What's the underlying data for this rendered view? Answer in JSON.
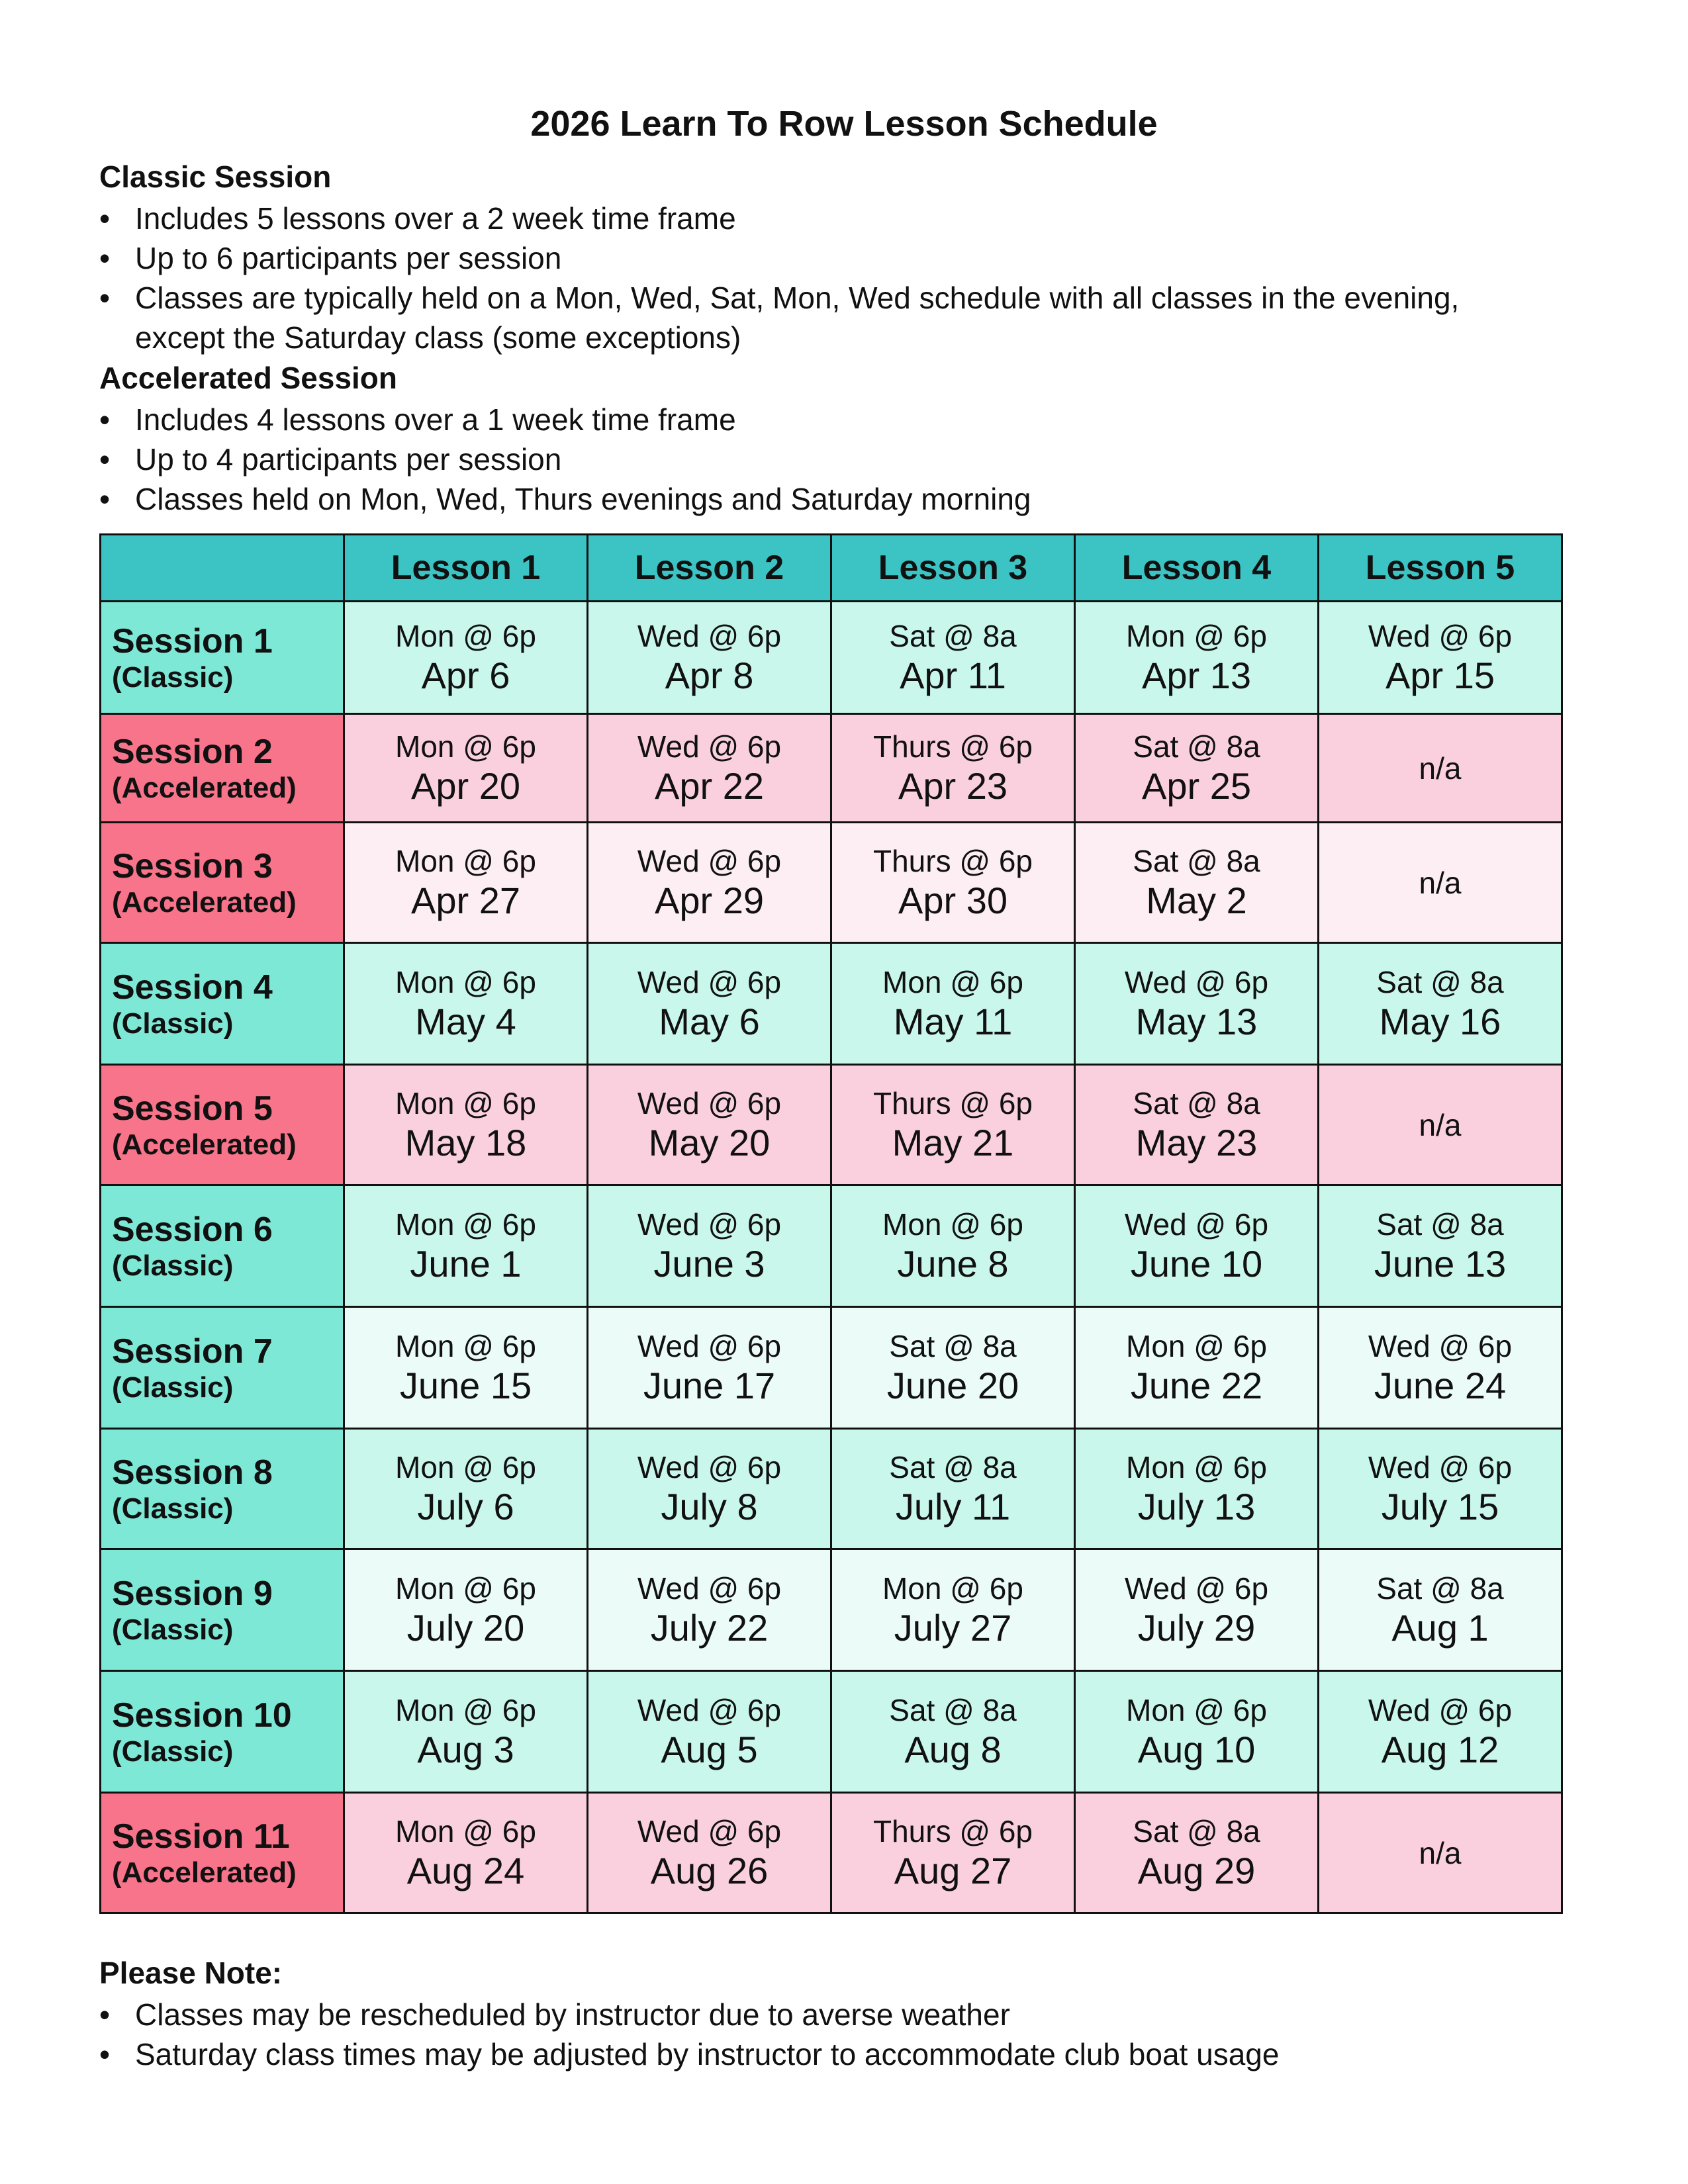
{
  "title": "2026 Learn To Row Lesson Schedule",
  "sections": [
    {
      "heading": "Classic Session",
      "bullets": [
        "Includes 5 lessons over a 2 week time frame",
        "Up to 6 participants per session",
        "Classes are typically held on a Mon, Wed, Sat, Mon, Wed schedule with all classes in the evening, except the Saturday class (some exceptions)"
      ]
    },
    {
      "heading": "Accelerated Session",
      "bullets": [
        "Includes 4 lessons over a 1 week time frame",
        "Up to 4 participants per session",
        "Classes held on Mon, Wed, Thurs evenings and Saturday morning"
      ]
    }
  ],
  "table": {
    "header": [
      "Lesson 1",
      "Lesson 2",
      "Lesson 3",
      "Lesson 4",
      "Lesson 5"
    ],
    "rows": [
      {
        "session": "Session 1",
        "kind": "(Classic)",
        "cells": [
          {
            "time": "Mon @ 6p",
            "date": "Apr 6"
          },
          {
            "time": "Wed @ 6p",
            "date": "Apr 8"
          },
          {
            "time": "Sat @ 8a",
            "date": "Apr 11"
          },
          {
            "time": "Mon @ 6p",
            "date": "Apr 13"
          },
          {
            "time": "Wed @ 6p",
            "date": "Apr 15"
          }
        ]
      },
      {
        "session": "Session 2",
        "kind": "(Accelerated)",
        "cells": [
          {
            "time": "Mon @ 6p",
            "date": "Apr 20"
          },
          {
            "time": "Wed @ 6p",
            "date": "Apr 22"
          },
          {
            "time": "Thurs @ 6p",
            "date": "Apr 23"
          },
          {
            "time": "Sat @ 8a",
            "date": "Apr 25"
          },
          "n/a"
        ]
      },
      {
        "session": "Session 3",
        "kind": "(Accelerated)",
        "cells": [
          {
            "time": "Mon @ 6p",
            "date": "Apr 27"
          },
          {
            "time": "Wed @ 6p",
            "date": "Apr 29"
          },
          {
            "time": "Thurs @ 6p",
            "date": "Apr 30"
          },
          {
            "time": "Sat @ 8a",
            "date": "May 2"
          },
          "n/a"
        ]
      },
      {
        "session": "Session 4",
        "kind": "(Classic)",
        "cells": [
          {
            "time": "Mon @ 6p",
            "date": "May 4"
          },
          {
            "time": "Wed @ 6p",
            "date": "May 6"
          },
          {
            "time": "Mon @ 6p",
            "date": "May 11"
          },
          {
            "time": "Wed @ 6p",
            "date": "May 13"
          },
          {
            "time": "Sat @ 8a",
            "date": "May 16"
          }
        ]
      },
      {
        "session": "Session 5",
        "kind": "(Accelerated)",
        "cells": [
          {
            "time": "Mon @ 6p",
            "date": "May 18"
          },
          {
            "time": "Wed @ 6p",
            "date": "May 20"
          },
          {
            "time": "Thurs @ 6p",
            "date": "May 21"
          },
          {
            "time": "Sat @ 8a",
            "date": "May 23"
          },
          "n/a"
        ]
      },
      {
        "session": "Session 6",
        "kind": "(Classic)",
        "cells": [
          {
            "time": "Mon @ 6p",
            "date": "June 1"
          },
          {
            "time": "Wed @ 6p",
            "date": "June 3"
          },
          {
            "time": "Mon @ 6p",
            "date": "June 8"
          },
          {
            "time": "Wed @ 6p",
            "date": "June 10"
          },
          {
            "time": "Sat @ 8a",
            "date": "June 13"
          }
        ]
      },
      {
        "session": "Session 7",
        "kind": "(Classic)",
        "cells": [
          {
            "time": "Mon @ 6p",
            "date": "June 15"
          },
          {
            "time": "Wed @ 6p",
            "date": "June 17"
          },
          {
            "time": "Sat @ 8a",
            "date": "June 20"
          },
          {
            "time": "Mon @ 6p",
            "date": "June 22"
          },
          {
            "time": "Wed @ 6p",
            "date": "June 24"
          }
        ]
      },
      {
        "session": "Session 8",
        "kind": "(Classic)",
        "cells": [
          {
            "time": "Mon @ 6p",
            "date": "July 6"
          },
          {
            "time": "Wed @ 6p",
            "date": "July 8"
          },
          {
            "time": "Sat @ 8a",
            "date": "July 11"
          },
          {
            "time": "Mon @ 6p",
            "date": "July 13"
          },
          {
            "time": "Wed @ 6p",
            "date": "July 15"
          }
        ]
      },
      {
        "session": "Session 9",
        "kind": "(Classic)",
        "cells": [
          {
            "time": "Mon @ 6p",
            "date": "July 20"
          },
          {
            "time": "Wed @ 6p",
            "date": "July 22"
          },
          {
            "time": "Mon @ 6p",
            "date": "July 27"
          },
          {
            "time": "Wed @ 6p",
            "date": "July 29"
          },
          {
            "time": "Sat @ 8a",
            "date": "Aug 1"
          }
        ]
      },
      {
        "session": "Session 10",
        "kind": "(Classic)",
        "cells": [
          {
            "time": "Mon @ 6p",
            "date": "Aug 3"
          },
          {
            "time": "Wed @ 6p",
            "date": "Aug 5"
          },
          {
            "time": "Sat @ 8a",
            "date": "Aug 8"
          },
          {
            "time": "Mon @ 6p",
            "date": "Aug 10"
          },
          {
            "time": "Wed @ 6p",
            "date": "Aug 12"
          }
        ]
      },
      {
        "session": "Session 11",
        "kind": "(Accelerated)",
        "cells": [
          {
            "time": "Mon @ 6p",
            "date": "Aug 24"
          },
          {
            "time": "Wed @ 6p",
            "date": "Aug 26"
          },
          {
            "time": "Thurs @ 6p",
            "date": "Aug 27"
          },
          {
            "time": "Sat @ 8a",
            "date": "Aug 29"
          },
          "n/a"
        ]
      }
    ]
  },
  "note": {
    "heading": "Please Note:",
    "bullets": [
      "Classes may be rescheduled by instructor due to averse weather",
      "Saturday class times may be adjusted by instructor to accommodate club boat usage"
    ]
  }
}
